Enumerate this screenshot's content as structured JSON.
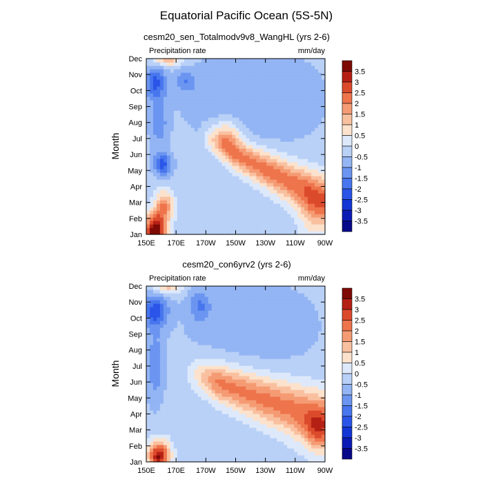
{
  "chart_data": {
    "title": "Equatorial Pacific Ocean (5S-5N)",
    "type": "heatmap",
    "panels": [
      {
        "subtitle": "cesm20_sen_Totalmodv9v8_WangHL (yrs 2-6)",
        "left_label": "Precipitation rate",
        "right_label": "mm/day",
        "ylabel": "Month",
        "x_ticks": [
          "150E",
          "170E",
          "170W",
          "150W",
          "130W",
          "110W",
          "90W"
        ],
        "y_ticks": [
          "Jan",
          "Feb",
          "Mar",
          "Apr",
          "May",
          "Jun",
          "Jul",
          "Aug",
          "Sep",
          "Oct",
          "Nov",
          "Dec"
        ],
        "anomalies": [
          {
            "lon": 0.05,
            "mon": 0.2,
            "sx": 0.06,
            "sy": 1.1,
            "amp": 4.5
          },
          {
            "lon": 0.1,
            "mon": 1.8,
            "sx": 0.05,
            "sy": 0.9,
            "amp": 2.2
          },
          {
            "lon": 0.12,
            "mon": 11.0,
            "sx": 0.08,
            "sy": 0.45,
            "amp": 1.8
          },
          {
            "lon": 0.05,
            "mon": 9.5,
            "sx": 0.06,
            "sy": 1.0,
            "amp": -1.8
          },
          {
            "lon": 0.09,
            "mon": 4.4,
            "sx": 0.05,
            "sy": 0.7,
            "amp": -1.9
          },
          {
            "lon": 0.07,
            "mon": 7.0,
            "sx": 0.05,
            "sy": 1.5,
            "amp": -1.0
          },
          {
            "lon": 0.22,
            "mon": 9.6,
            "sx": 0.06,
            "sy": 0.7,
            "amp": -1.0
          },
          {
            "lon": 0.6,
            "mon": 8.5,
            "sx": 0.45,
            "sy": 3.5,
            "amp": -0.6
          },
          {
            "lon": 0.45,
            "mon": 6.3,
            "sx": 0.08,
            "sy": 0.9,
            "amp": 1.4
          },
          {
            "lon": 0.93,
            "mon": 1.2,
            "sx": 0.08,
            "sy": 1.5,
            "amp": 1.0
          }
        ],
        "band": {
          "start_lon": 0.3,
          "start_mon": 6.2,
          "end_mon": 2.2,
          "amp": 2.6,
          "width_mon": 1.1
        }
      },
      {
        "subtitle": "cesm20_con6yrv2 (yrs 2-6)",
        "left_label": "Precipitation rate",
        "right_label": "mm/day",
        "ylabel": "Month",
        "x_ticks": [
          "150E",
          "170E",
          "170W",
          "150W",
          "130W",
          "110W",
          "90W"
        ],
        "y_ticks": [
          "Jan",
          "Feb",
          "Mar",
          "Apr",
          "May",
          "Jun",
          "Jul",
          "Aug",
          "Sep",
          "Oct",
          "Nov",
          "Dec"
        ],
        "anomalies": [
          {
            "lon": 0.07,
            "mon": 0.4,
            "sx": 0.06,
            "sy": 0.9,
            "amp": 3.8
          },
          {
            "lon": 0.12,
            "mon": 11.0,
            "sx": 0.08,
            "sy": 0.45,
            "amp": 1.6
          },
          {
            "lon": 0.05,
            "mon": 9.5,
            "sx": 0.07,
            "sy": 1.0,
            "amp": -1.9
          },
          {
            "lon": 0.3,
            "mon": 9.8,
            "sx": 0.06,
            "sy": 1.0,
            "amp": -1.1
          },
          {
            "lon": 0.05,
            "mon": 6.0,
            "sx": 0.05,
            "sy": 2.5,
            "amp": -1.0
          },
          {
            "lon": 0.6,
            "mon": 8.5,
            "sx": 0.45,
            "sy": 3.5,
            "amp": -0.5
          },
          {
            "lon": 0.95,
            "mon": 2.0,
            "sx": 0.07,
            "sy": 1.2,
            "amp": 1.3
          }
        ],
        "band": {
          "start_lon": 0.2,
          "start_mon": 5.8,
          "end_mon": 2.6,
          "amp": 2.5,
          "width_mon": 1.4
        }
      }
    ],
    "colorbar": {
      "labels": [
        "3.5",
        "3",
        "2.5",
        "2",
        "1.5",
        "1",
        "0.5",
        "0",
        "-0.5",
        "-1",
        "-1.5",
        "-2",
        "-2.5",
        "-3",
        "-3.5"
      ],
      "levels": [
        -3.5,
        -3,
        -2.5,
        -2,
        -1.5,
        -1,
        -0.5,
        0,
        0.5,
        1,
        1.5,
        2,
        2.5,
        3,
        3.5
      ],
      "colors": [
        "#08088a",
        "#0a1bb5",
        "#1236d6",
        "#2a55e8",
        "#4876ee",
        "#6b95f0",
        "#93b5f4",
        "#b9d0f7",
        "#dde9fb",
        "#fce2cc",
        "#f9c0a0",
        "#f59b73",
        "#ee744c",
        "#dc4a2c",
        "#b52015",
        "#7e0a06"
      ]
    }
  }
}
